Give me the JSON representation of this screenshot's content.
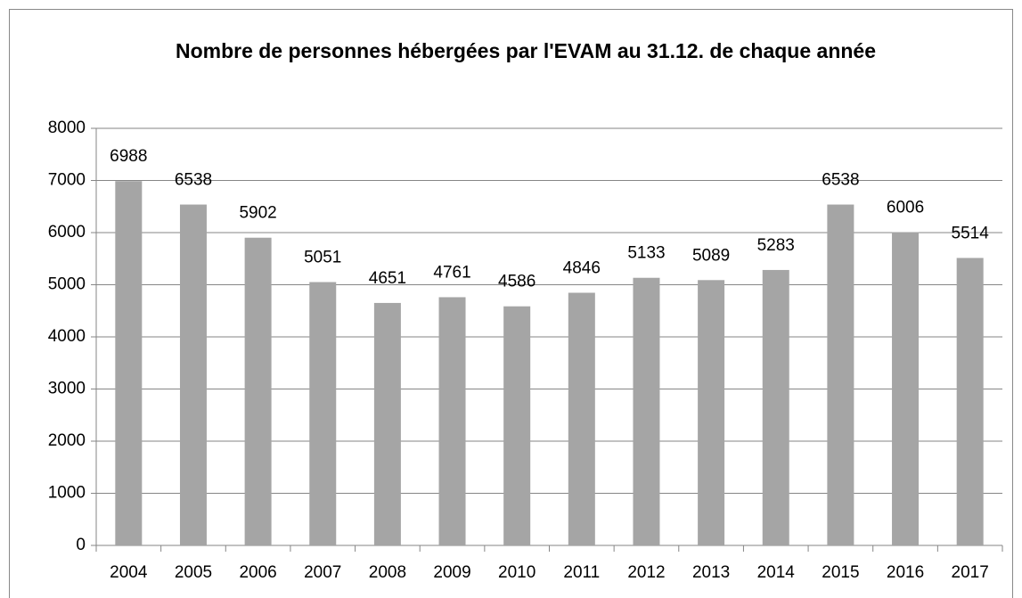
{
  "chart_data": {
    "type": "bar",
    "title": "Nombre de personnes hébergées par l'EVAM au 31.12. de chaque année",
    "categories": [
      "2004",
      "2005",
      "2006",
      "2007",
      "2008",
      "2009",
      "2010",
      "2011",
      "2012",
      "2013",
      "2014",
      "2015",
      "2016",
      "2017"
    ],
    "values": [
      6988,
      6538,
      5902,
      5051,
      4651,
      4761,
      4586,
      4846,
      5133,
      5089,
      5283,
      6538,
      6006,
      5514
    ],
    "color": "#a5a5a5",
    "ylim": [
      0,
      8000
    ],
    "yticks": [
      0,
      1000,
      2000,
      3000,
      4000,
      5000,
      6000,
      7000,
      8000
    ],
    "grid": true
  }
}
